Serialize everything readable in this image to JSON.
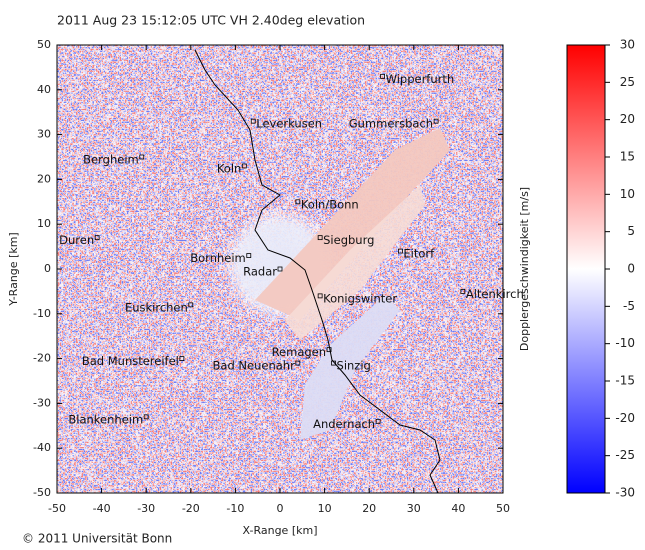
{
  "chart_data": {
    "type": "radar",
    "title": "2011 Aug 23 15:12:05 UTC   VH     2.40deg elevation",
    "xlabel": "X-Range [km]",
    "ylabel": "Y-Range [km]",
    "colorbar_label": "Dopplergeschwindigkeit [m/s]",
    "credit": "© 2011 Universität Bonn",
    "xlim": [
      -50,
      50
    ],
    "ylim": [
      -50,
      50
    ],
    "xticks": [
      -50,
      -40,
      -30,
      -20,
      -10,
      0,
      10,
      20,
      30,
      40,
      50
    ],
    "yticks": [
      -50,
      -40,
      -30,
      -20,
      -10,
      0,
      10,
      20,
      30,
      40,
      50
    ],
    "clim": [
      -30,
      30
    ],
    "cticks": [
      -30,
      -25,
      -20,
      -15,
      -10,
      -5,
      0,
      5,
      10,
      15,
      20,
      25,
      30
    ],
    "colormap": [
      "#0000ff",
      "#ffffff",
      "#ff0000"
    ],
    "places": [
      {
        "name": "Wipperfurth",
        "x": 23,
        "y": 43,
        "side": "right"
      },
      {
        "name": "Leverkusen",
        "x": -6,
        "y": 33,
        "side": "right"
      },
      {
        "name": "Gummersbach",
        "x": 35,
        "y": 33,
        "side": "left"
      },
      {
        "name": "Bergheim",
        "x": -31,
        "y": 25,
        "side": "left"
      },
      {
        "name": "Koln",
        "x": -8,
        "y": 23,
        "side": "left"
      },
      {
        "name": "Koln/Bonn",
        "x": 4,
        "y": 15,
        "side": "right"
      },
      {
        "name": "Duren",
        "x": -41,
        "y": 7,
        "side": "left"
      },
      {
        "name": "Siegburg",
        "x": 9,
        "y": 7,
        "side": "right"
      },
      {
        "name": "Bornheim",
        "x": -7,
        "y": 3,
        "side": "left"
      },
      {
        "name": "Eitorf",
        "x": 27,
        "y": 4,
        "side": "right"
      },
      {
        "name": "Radar",
        "x": 0,
        "y": 0,
        "side": "left"
      },
      {
        "name": "Altenkirch",
        "x": 41,
        "y": -5,
        "side": "right"
      },
      {
        "name": "Konigswinter",
        "x": 9,
        "y": -6,
        "side": "right"
      },
      {
        "name": "Euskirchen",
        "x": -20,
        "y": -8,
        "side": "left"
      },
      {
        "name": "Remagen",
        "x": 11,
        "y": -18,
        "side": "left"
      },
      {
        "name": "Bad Munstereifel",
        "x": -22,
        "y": -20,
        "side": "left"
      },
      {
        "name": "Bad Neuenahr",
        "x": 4,
        "y": -21,
        "side": "left"
      },
      {
        "name": "Sinzig",
        "x": 12,
        "y": -21,
        "side": "right"
      },
      {
        "name": "Blankenheim",
        "x": -30,
        "y": -33,
        "side": "left"
      },
      {
        "name": "Andernach",
        "x": 22,
        "y": -34,
        "side": "left"
      }
    ]
  }
}
